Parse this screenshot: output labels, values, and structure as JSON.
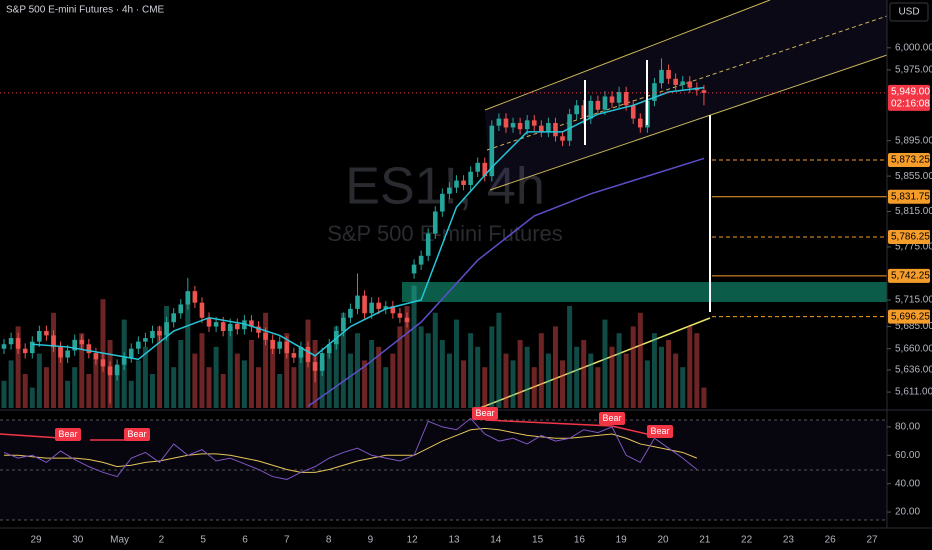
{
  "header": {
    "symbol": "S&P 500 E-mini Futures · 4h · CME",
    "currency": "USD"
  },
  "chart_data": {
    "type": "candlestick",
    "watermark": [
      "ES1!, 4h",
      "S&P 500 E-mini Futures"
    ],
    "up_color": "#26a69a",
    "down_color": "#ef5350",
    "ylim": [
      5593,
      6054
    ],
    "yticks": [
      {
        "value": 6000,
        "label": "6,000.00"
      },
      {
        "value": 5975,
        "label": "5,975.00"
      },
      {
        "value": 5895,
        "label": "5,895.00"
      },
      {
        "value": 5855,
        "label": "5,855.00"
      },
      {
        "value": 5815,
        "label": "5,815.00"
      },
      {
        "value": 5775,
        "label": "5,775.00"
      },
      {
        "value": 5715,
        "label": "5,715.00"
      },
      {
        "value": 5685,
        "label": "5,685.00"
      },
      {
        "value": 5660,
        "label": "5,660.00"
      },
      {
        "value": 5636,
        "label": "5,636.00"
      },
      {
        "value": 5611,
        "label": "5,611.00"
      }
    ],
    "levels": [
      {
        "value": 5873.25,
        "label": "5,873.25"
      },
      {
        "value": 5831.75,
        "label": "5,831.75"
      },
      {
        "value": 5786.25,
        "label": "5,786.25"
      },
      {
        "value": 5742.25,
        "label": "5,742.25"
      },
      {
        "value": 5696.25,
        "label": "5,696.25"
      }
    ],
    "level_color": "#f59d2a",
    "last_price": {
      "value": 5949,
      "label": "5,949.00"
    },
    "countdown": "02:16:08",
    "open": [
      5660,
      5665,
      5672,
      5660,
      5655,
      5668,
      5680,
      5675,
      5662,
      5650,
      5658,
      5670,
      5665,
      5655,
      5648,
      5640,
      5630,
      5642,
      5650,
      5660,
      5668,
      5672,
      5680,
      5675,
      5690,
      5700,
      5710,
      5725,
      5712,
      5695,
      5685,
      5690,
      5680,
      5688,
      5682,
      5692,
      5685,
      5678,
      5670,
      5660,
      5668,
      5655,
      5650,
      5662,
      5645,
      5635,
      5655,
      5665,
      5680,
      5695,
      5705,
      5720,
      5700,
      5712,
      5705,
      5708,
      5700,
      5695,
      5745,
      5755,
      5765,
      5790,
      5815,
      5835,
      5842,
      5850,
      5845,
      5860,
      5870,
      5855,
      5912,
      5920,
      5910,
      5915,
      5908,
      5918,
      5912,
      5905,
      5915,
      5900,
      5895,
      5925,
      5935,
      5920,
      5940,
      5930,
      5945,
      5938,
      5950,
      5935,
      5920,
      5910,
      5940,
      5960,
      5975,
      5965,
      5958,
      5962,
      5955,
      5952
    ],
    "high": [
      5671,
      5678,
      5678,
      5666,
      5674,
      5686,
      5686,
      5681,
      5668,
      5664,
      5676,
      5676,
      5671,
      5661,
      5654,
      5646,
      5648,
      5656,
      5666,
      5674,
      5678,
      5686,
      5686,
      5696,
      5706,
      5716,
      5740,
      5731,
      5718,
      5701,
      5696,
      5696,
      5694,
      5694,
      5698,
      5698,
      5691,
      5684,
      5676,
      5674,
      5674,
      5661,
      5668,
      5668,
      5651,
      5661,
      5671,
      5686,
      5701,
      5711,
      5745,
      5726,
      5718,
      5718,
      5714,
      5714,
      5706,
      5701,
      5761,
      5771,
      5796,
      5821,
      5841,
      5848,
      5856,
      5856,
      5866,
      5876,
      5876,
      5918,
      5926,
      5926,
      5921,
      5921,
      5924,
      5924,
      5918,
      5921,
      5921,
      5906,
      5931,
      5941,
      5941,
      5946,
      5946,
      5951,
      5951,
      5956,
      5956,
      5941,
      5926,
      5946,
      5966,
      5988,
      5981,
      5971,
      5968,
      5968,
      5961,
      5958
    ],
    "low": [
      5654,
      5659,
      5654,
      5649,
      5649,
      5662,
      5669,
      5656,
      5644,
      5644,
      5652,
      5659,
      5649,
      5642,
      5634,
      5598,
      5624,
      5636,
      5644,
      5654,
      5662,
      5666,
      5669,
      5669,
      5684,
      5694,
      5704,
      5706,
      5689,
      5679,
      5679,
      5674,
      5674,
      5676,
      5676,
      5679,
      5672,
      5664,
      5654,
      5654,
      5649,
      5644,
      5644,
      5639,
      5622,
      5629,
      5649,
      5659,
      5674,
      5689,
      5699,
      5694,
      5694,
      5699,
      5699,
      5694,
      5689,
      5684,
      5739,
      5749,
      5759,
      5784,
      5809,
      5829,
      5836,
      5839,
      5839,
      5854,
      5849,
      5849,
      5906,
      5904,
      5904,
      5902,
      5902,
      5906,
      5899,
      5899,
      5894,
      5889,
      5889,
      5919,
      5914,
      5914,
      5924,
      5924,
      5932,
      5932,
      5929,
      5914,
      5904,
      5904,
      5934,
      5954,
      5959,
      5952,
      5952,
      5949,
      5946,
      5935
    ],
    "close": [
      5665,
      5672,
      5660,
      5655,
      5668,
      5680,
      5675,
      5662,
      5650,
      5658,
      5670,
      5665,
      5655,
      5648,
      5640,
      5630,
      5642,
      5650,
      5660,
      5668,
      5672,
      5680,
      5675,
      5690,
      5700,
      5710,
      5725,
      5712,
      5695,
      5685,
      5690,
      5680,
      5688,
      5682,
      5692,
      5685,
      5678,
      5670,
      5660,
      5668,
      5655,
      5650,
      5662,
      5645,
      5635,
      5655,
      5665,
      5680,
      5695,
      5705,
      5720,
      5700,
      5712,
      5705,
      5708,
      5700,
      5695,
      5690,
      5755,
      5765,
      5790,
      5815,
      5835,
      5842,
      5850,
      5845,
      5860,
      5870,
      5855,
      5912,
      5920,
      5910,
      5915,
      5908,
      5918,
      5912,
      5905,
      5915,
      5900,
      5895,
      5925,
      5935,
      5920,
      5940,
      5930,
      5945,
      5938,
      5950,
      5935,
      5920,
      5910,
      5940,
      5960,
      5975,
      5965,
      5958,
      5962,
      5955,
      5952,
      5949
    ],
    "volume": [
      20,
      35,
      60,
      25,
      15,
      40,
      30,
      70,
      45,
      20,
      30,
      55,
      25,
      40,
      80,
      50,
      30,
      65,
      20,
      35,
      45,
      25,
      60,
      75,
      30,
      50,
      85,
      40,
      55,
      30,
      45,
      25,
      60,
      40,
      35,
      50,
      30,
      70,
      45,
      25,
      55,
      30,
      40,
      65,
      50,
      35,
      45,
      60,
      70,
      40,
      55,
      35,
      50,
      45,
      30,
      40,
      60,
      75,
      90,
      60,
      55,
      70,
      50,
      40,
      65,
      35,
      55,
      45,
      30,
      60,
      70,
      40,
      35,
      50,
      45,
      30,
      55,
      40,
      60,
      35,
      75,
      45,
      50,
      40,
      30,
      65,
      45,
      55,
      40,
      60,
      70,
      35,
      55,
      45,
      50,
      40,
      30,
      60,
      55,
      15
    ],
    "volume_lim": [
      0,
      300
    ],
    "ema_fast": {
      "color": "#26c6da",
      "values": [
        5665,
        5662,
        5655,
        5648,
        5680,
        5695,
        5688,
        5675,
        5652,
        5685,
        5705,
        5715,
        5820,
        5865,
        5905,
        5905,
        5925,
        5935,
        5950,
        5955
      ]
    },
    "ema_slow": {
      "color": "#5b4fc9",
      "values": [
        5595,
        5640,
        5690,
        5760,
        5810,
        5835,
        5855,
        5875
      ]
    },
    "time_labels": [
      "29",
      "30",
      "May",
      "2",
      "5",
      "6",
      "7",
      "8",
      "9",
      "12",
      "13",
      "14",
      "15",
      "16",
      "19",
      "20",
      "21",
      "22",
      "23",
      "26",
      "27"
    ],
    "rsi": {
      "color": "#7e57c2",
      "ma_color": "#e6c65a",
      "ylim": [
        13,
        90.5
      ],
      "yticks": [
        {
          "value": 80,
          "label": "80.00"
        },
        {
          "value": 60,
          "label": "60.00"
        },
        {
          "value": 40,
          "label": "40.00"
        },
        {
          "value": 20,
          "label": "20.00"
        }
      ],
      "values": [
        62,
        58,
        60,
        55,
        63,
        57,
        52,
        48,
        45,
        58,
        62,
        55,
        68,
        60,
        64,
        56,
        58,
        54,
        50,
        45,
        43,
        48,
        52,
        58,
        62,
        65,
        60,
        58,
        56,
        60,
        84,
        80,
        78,
        86,
        75,
        70,
        72,
        68,
        74,
        70,
        72,
        78,
        76,
        80,
        60,
        55,
        72,
        65,
        58,
        50
      ],
      "ma": [
        60,
        60,
        59,
        58,
        58,
        58,
        57,
        55,
        52,
        53,
        55,
        56,
        58,
        60,
        61,
        61,
        60,
        58,
        56,
        53,
        50,
        48,
        48,
        50,
        53,
        56,
        58,
        60,
        60,
        60,
        65,
        70,
        74,
        78,
        79,
        78,
        76,
        74,
        73,
        72,
        72,
        73,
        74,
        75,
        72,
        68,
        66,
        64,
        62,
        58
      ],
      "labels": [
        "Bear",
        "Bear",
        "Bear",
        "Bear",
        "Bear"
      ]
    }
  }
}
